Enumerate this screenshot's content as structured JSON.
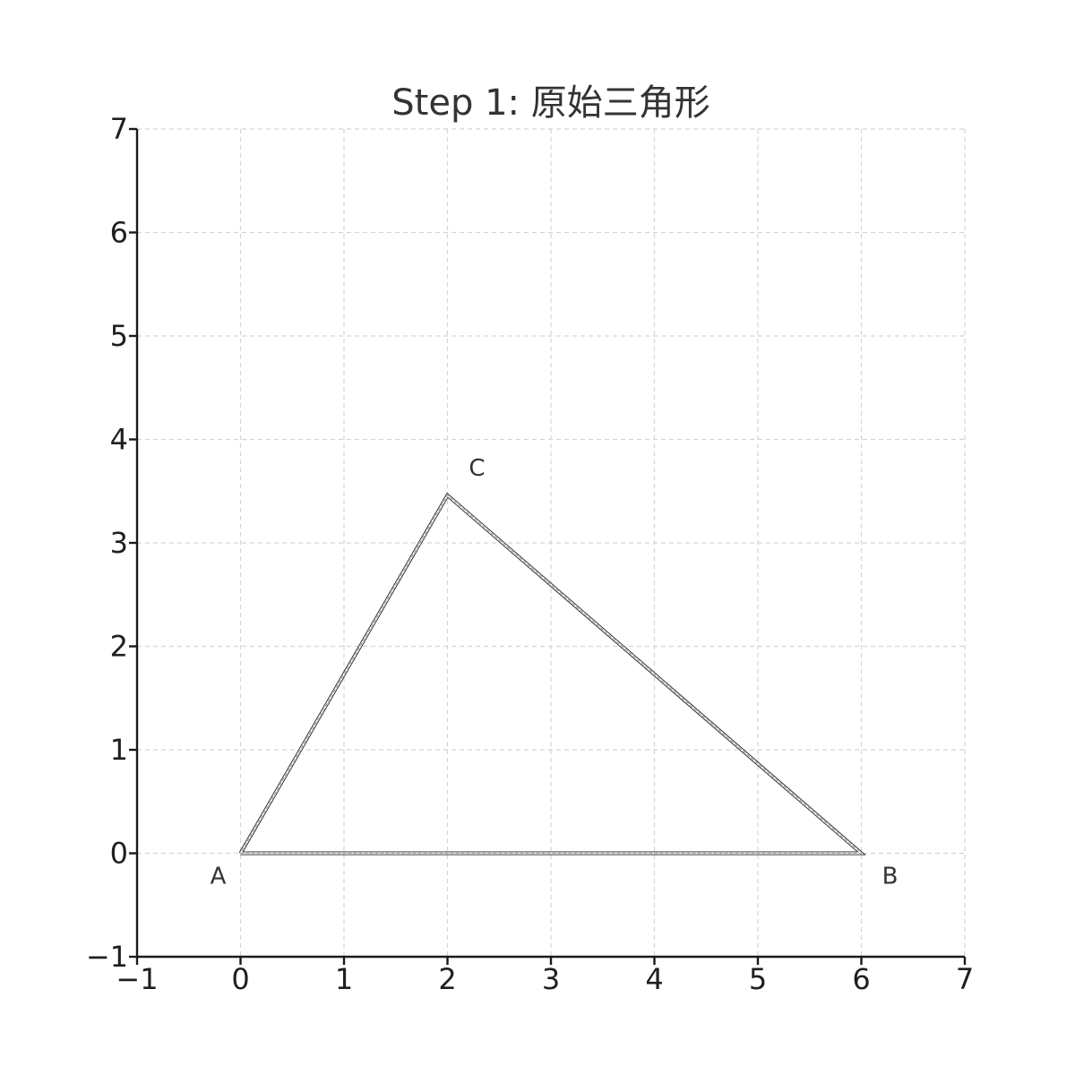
{
  "chart_data": {
    "type": "line",
    "title": "Step 1: 原始三角形",
    "xlim": [
      -1,
      7
    ],
    "ylim": [
      -1,
      7
    ],
    "x_ticks": [
      "−1",
      "0",
      "1",
      "2",
      "3",
      "4",
      "5",
      "6",
      "7"
    ],
    "y_ticks": [
      "−1",
      "0",
      "1",
      "2",
      "3",
      "4",
      "5",
      "6",
      "7"
    ],
    "grid": true,
    "grid_style": "dashed",
    "series": [
      {
        "x": [
          0,
          6,
          2,
          0
        ],
        "y": [
          0,
          0,
          3.46,
          0
        ]
      }
    ],
    "points": [
      {
        "label": "A",
        "x": 0,
        "y": 0
      },
      {
        "label": "B",
        "x": 6,
        "y": 0
      },
      {
        "label": "C",
        "x": 2,
        "y": 3.46
      }
    ],
    "colors": {
      "axis": "#1a1a1a",
      "grid": "#d4d4d4",
      "triangle": "#222222"
    }
  }
}
